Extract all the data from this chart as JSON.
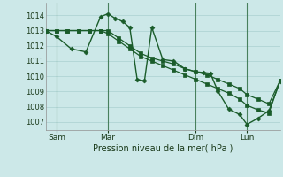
{
  "bg_color": "#cce8e8",
  "grid_major_color": "#aad0d0",
  "grid_minor_color": "#aad0d0",
  "line_color": "#1a5c2a",
  "xlabel": "Pression niveau de la mer( hPa )",
  "ylim": [
    1006.5,
    1014.8
  ],
  "yticks": [
    1007,
    1008,
    1009,
    1010,
    1011,
    1012,
    1013,
    1014
  ],
  "xlim": [
    0,
    32
  ],
  "xtick_labels": [
    "Sam",
    "Mar",
    "Dim",
    "Lun"
  ],
  "xtick_positions": [
    1.5,
    8.5,
    20.5,
    27.5
  ],
  "vline_positions": [
    1.5,
    8.5,
    20.5,
    27.5
  ],
  "line1_x": [
    0,
    1.5,
    3,
    4.5,
    6,
    7.5,
    8.5,
    10,
    11.5,
    13,
    14.5,
    16,
    17.5,
    19,
    20.5,
    22,
    23.5,
    25,
    26.5,
    27.5,
    29,
    30.5,
    32
  ],
  "line1_y": [
    1013.0,
    1013.0,
    1013.0,
    1013.0,
    1013.0,
    1013.0,
    1013.0,
    1012.5,
    1012.0,
    1011.5,
    1011.2,
    1011.0,
    1010.8,
    1010.5,
    1010.3,
    1010.1,
    1009.8,
    1009.5,
    1009.2,
    1008.8,
    1008.5,
    1008.2,
    1009.7
  ],
  "line2_x": [
    0,
    1.5,
    3,
    4.5,
    6,
    7.5,
    8.5,
    10,
    11.5,
    13,
    14.5,
    16,
    17.5,
    19,
    20.5,
    22,
    23.5,
    25,
    26.5,
    27.5,
    29,
    30.5,
    32
  ],
  "line2_y": [
    1013.0,
    1013.0,
    1013.0,
    1013.0,
    1013.0,
    1013.0,
    1012.8,
    1012.3,
    1011.8,
    1011.3,
    1011.0,
    1010.7,
    1010.4,
    1010.1,
    1009.8,
    1009.5,
    1009.2,
    1008.9,
    1008.5,
    1008.1,
    1007.8,
    1007.6,
    1009.7
  ],
  "line3_x": [
    0,
    1.5,
    3.5,
    5.5,
    7.5,
    8.5,
    9.5,
    10.5,
    11.5,
    12.5,
    13.5,
    14.5,
    16,
    17.5,
    19,
    20.5,
    21.5,
    22.5,
    23.5,
    25,
    26.5,
    27.5,
    29,
    30.5,
    32
  ],
  "line3_y": [
    1013.0,
    1012.6,
    1011.8,
    1011.6,
    1013.9,
    1014.1,
    1013.8,
    1013.6,
    1013.2,
    1009.8,
    1009.7,
    1013.2,
    1011.1,
    1011.0,
    1010.5,
    1010.3,
    1010.25,
    1010.2,
    1009.05,
    1007.85,
    1007.5,
    1006.85,
    1007.25,
    1007.75,
    1009.65
  ]
}
